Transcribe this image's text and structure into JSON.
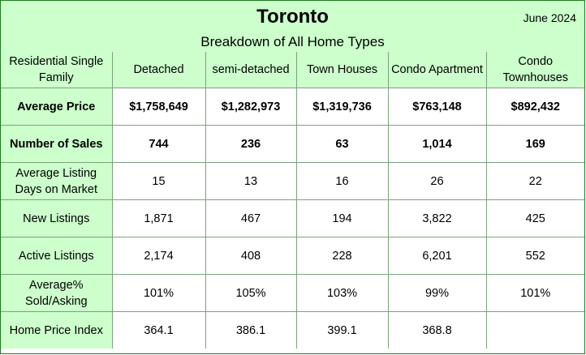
{
  "header": {
    "title": "Toronto",
    "subtitle": "Breakdown of All Home Types",
    "date": "June 2024"
  },
  "table": {
    "columns": [
      "Residential Single Family",
      "Detached",
      "semi-detached",
      "Town Houses",
      "Condo Apartment",
      "Condo Townhouses"
    ],
    "rows": [
      {
        "label": "Average Price",
        "values": [
          "$1,758,649",
          "$1,282,973",
          "$1,319,736",
          "$763,148",
          "$892,432"
        ]
      },
      {
        "label": "Number of Sales",
        "values": [
          "744",
          "236",
          "63",
          "1,014",
          "169"
        ]
      },
      {
        "label": "Average Listing Days on Market",
        "values": [
          "15",
          "13",
          "16",
          "26",
          "22"
        ]
      },
      {
        "label": "New Listings",
        "values": [
          "1,871",
          "467",
          "194",
          "3,822",
          "425"
        ]
      },
      {
        "label": "Active Listings",
        "values": [
          "2,174",
          "408",
          "228",
          "6,201",
          "552"
        ]
      },
      {
        "label": "Average% Sold/Asking",
        "values": [
          "101%",
          "105%",
          "103%",
          "99%",
          "101%"
        ]
      },
      {
        "label": "Home Price Index",
        "values": [
          "364.1",
          "386.1",
          "399.1",
          "368.8",
          ""
        ]
      }
    ]
  },
  "colors": {
    "header_bg": "#ccffcc",
    "border": "#1f7a1f"
  }
}
